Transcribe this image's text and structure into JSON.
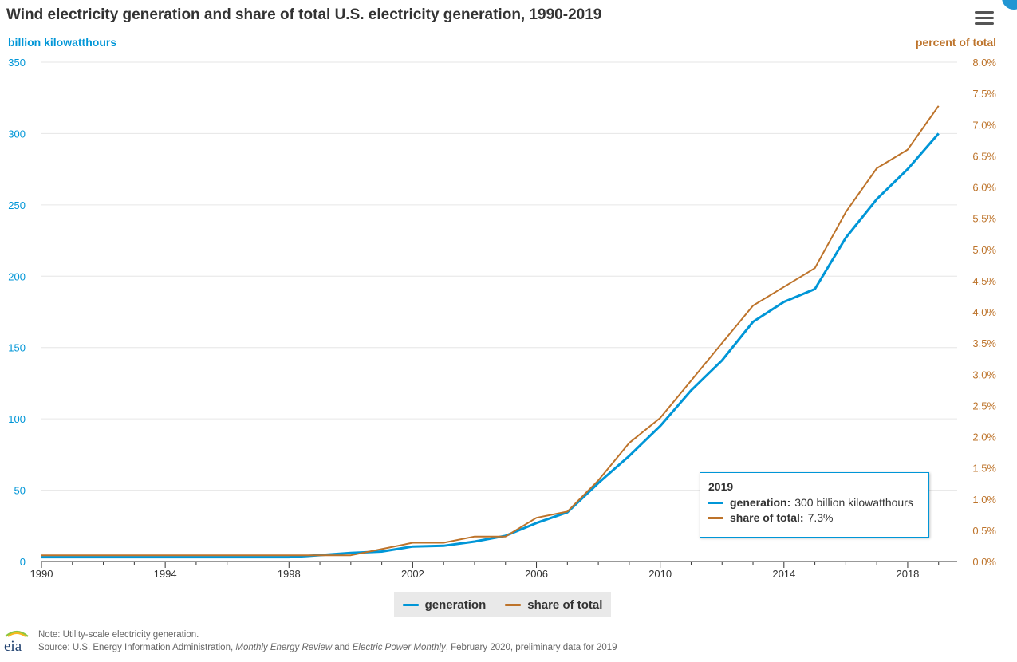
{
  "title": "Wind electricity generation and share of total U.S. electricity generation, 1990-2019",
  "colors": {
    "generation": "#0096d7",
    "share": "#bd732a",
    "grid": "#e6e6e6",
    "axis": "#333333"
  },
  "axis": {
    "left_title": "billion kilowatthours",
    "right_title": "percent of total",
    "left_ticks": [
      "0",
      "50",
      "100",
      "150",
      "200",
      "250",
      "300",
      "350"
    ],
    "right_ticks": [
      "0.0%",
      "0.5%",
      "1.0%",
      "1.5%",
      "2.0%",
      "2.5%",
      "3.0%",
      "3.5%",
      "4.0%",
      "4.5%",
      "5.0%",
      "5.5%",
      "6.0%",
      "6.5%",
      "7.0%",
      "7.5%",
      "8.0%"
    ],
    "x_ticks": [
      "1990",
      "1994",
      "1998",
      "2002",
      "2006",
      "2010",
      "2014",
      "2018"
    ]
  },
  "legend": {
    "generation": "generation",
    "share": "share of total"
  },
  "tooltip": {
    "year": "2019",
    "generation_label": "generation:",
    "generation_value": "300 billion kilowatthours",
    "share_label": "share of total:",
    "share_value": "7.3%"
  },
  "footer": {
    "note": "Note: Utility-scale electricity generation.",
    "source_prefix": "Source: U.S. Energy Information Administration, ",
    "source_italic_1": "Monthly Energy Review",
    "source_and": " and ",
    "source_italic_2": "Electric Power Monthly",
    "source_suffix": ", February 2020, preliminary data for 2019"
  },
  "logo_text": "eia",
  "chart_data": {
    "type": "line",
    "x": [
      1990,
      1991,
      1992,
      1993,
      1994,
      1995,
      1996,
      1997,
      1998,
      1999,
      2000,
      2001,
      2002,
      2003,
      2004,
      2005,
      2006,
      2007,
      2008,
      2009,
      2010,
      2011,
      2012,
      2013,
      2014,
      2015,
      2016,
      2017,
      2018,
      2019
    ],
    "series": [
      {
        "name": "generation",
        "axis": "left",
        "values": [
          3,
          3,
          3,
          3,
          3,
          3,
          3,
          3,
          3,
          4.5,
          6,
          7,
          10.5,
          11,
          14,
          18,
          27,
          34.5,
          55,
          74,
          95,
          120,
          141,
          168,
          182,
          191,
          227,
          254,
          275,
          300
        ]
      },
      {
        "name": "share of total",
        "axis": "right",
        "values": [
          0.1,
          0.1,
          0.1,
          0.1,
          0.1,
          0.1,
          0.1,
          0.1,
          0.1,
          0.1,
          0.1,
          0.2,
          0.3,
          0.3,
          0.4,
          0.4,
          0.7,
          0.8,
          1.3,
          1.9,
          2.3,
          2.9,
          3.5,
          4.1,
          4.4,
          4.7,
          5.6,
          6.3,
          6.6,
          7.3
        ]
      }
    ],
    "ylim_left": [
      0,
      350
    ],
    "ylim_right": [
      0,
      8
    ],
    "xlim": [
      1990,
      2019.6
    ],
    "grid": true,
    "legend_position": "bottom-center"
  }
}
